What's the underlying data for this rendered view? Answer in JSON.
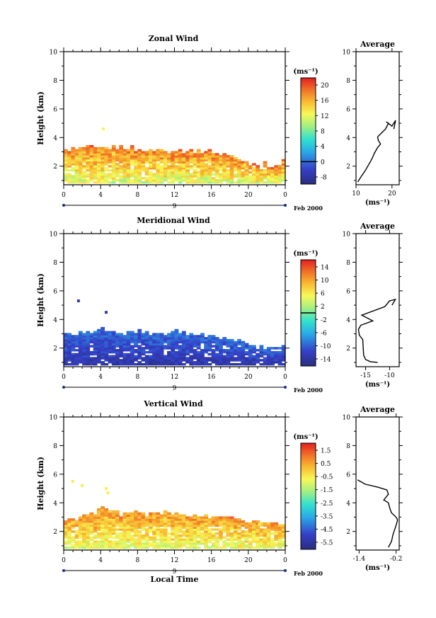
{
  "chart_data": [
    {
      "type": "heatmap",
      "title": "Zonal Wind",
      "ylabel": "Height (km)",
      "ylim": [
        0.7,
        10
      ],
      "y_ticks": [
        "2",
        "4",
        "6",
        "8",
        "10"
      ],
      "x_ticks": [
        "0",
        "4",
        "8",
        "12",
        "16",
        "20",
        "0"
      ],
      "x_date_label": "9",
      "x_range_label": "Feb 2000",
      "colorbar": {
        "unit": "(ms⁻¹)",
        "ticks": [
          "20",
          "16",
          "12",
          "8",
          "4",
          "0",
          "-8"
        ],
        "range": [
          -10,
          22
        ],
        "contour_at": 0
      },
      "cloud_top_km": [
        3.0,
        3.1,
        3.2,
        3.2,
        3.1,
        3.3,
        3.3,
        3.2,
        3.1,
        3.0,
        3.1,
        3.0,
        3.1,
        3.0,
        3.0,
        3.0,
        2.9,
        2.8,
        2.6,
        2.4,
        2.2,
        2.1,
        2.0,
        2.0,
        2.4
      ],
      "scattered_points": [
        {
          "x": 4.3,
          "y": 4.6
        },
        {
          "x": 19.6,
          "y": 2.1
        }
      ],
      "value_low": 5,
      "value_high": 18,
      "average": {
        "title": "Average",
        "xlabel": "(ms⁻¹)",
        "x_ticks": [
          "10",
          "20"
        ],
        "xlim": [
          10,
          22
        ],
        "ylim": [
          0.7,
          10
        ],
        "y_ticks": [
          "2",
          "4",
          "6",
          "8",
          "10"
        ],
        "profile": [
          [
            10.5,
            0.9
          ],
          [
            11.5,
            1.3
          ],
          [
            12.6,
            1.7
          ],
          [
            13.5,
            2.1
          ],
          [
            14.4,
            2.5
          ],
          [
            15.1,
            2.9
          ],
          [
            16.0,
            3.3
          ],
          [
            16.8,
            3.55
          ],
          [
            16.2,
            3.8
          ],
          [
            16.0,
            4.05
          ],
          [
            17.0,
            4.3
          ],
          [
            18.2,
            4.6
          ],
          [
            19.0,
            5.0
          ],
          [
            18.4,
            5.1
          ],
          [
            20.0,
            4.8
          ],
          [
            21.0,
            5.2
          ],
          [
            20.5,
            4.6
          ]
        ]
      }
    },
    {
      "type": "heatmap",
      "title": "Meridional Wind",
      "ylabel": "Height (km)",
      "ylim": [
        0.7,
        10
      ],
      "y_ticks": [
        "2",
        "4",
        "6",
        "8",
        "10"
      ],
      "x_ticks": [
        "0",
        "4",
        "8",
        "12",
        "16",
        "20",
        "0"
      ],
      "x_date_label": "9",
      "x_range_label": "Feb 2000",
      "colorbar": {
        "unit": "(ms⁻¹)",
        "ticks": [
          "14",
          "10",
          "6",
          "2",
          "-2",
          "-6",
          "-10",
          "-14"
        ],
        "range": [
          -16,
          16
        ],
        "contour_at": 0
      },
      "cloud_top_km": [
        2.9,
        3.0,
        3.1,
        3.2,
        3.3,
        3.2,
        3.1,
        3.0,
        3.1,
        3.0,
        2.9,
        3.0,
        3.1,
        3.0,
        2.9,
        2.8,
        2.7,
        2.5,
        2.4,
        2.3,
        2.1,
        2.0,
        2.0,
        2.0,
        2.2
      ],
      "scattered_points": [
        {
          "x": 1.6,
          "y": 5.3
        },
        {
          "x": 4.6,
          "y": 4.5
        }
      ],
      "value_low": -16,
      "value_high": -9,
      "average": {
        "title": "Average",
        "xlabel": "(ms⁻¹)",
        "x_ticks": [
          "-15",
          "-10"
        ],
        "xlim": [
          -17,
          -8
        ],
        "ylim": [
          0.7,
          10
        ],
        "y_ticks": [
          "2",
          "4",
          "6",
          "8",
          "10"
        ],
        "profile": [
          [
            -12.5,
            1.0
          ],
          [
            -14.0,
            1.05
          ],
          [
            -15.0,
            1.2
          ],
          [
            -15.4,
            1.5
          ],
          [
            -15.5,
            2.0
          ],
          [
            -15.6,
            2.6
          ],
          [
            -16.3,
            2.9
          ],
          [
            -16.5,
            3.3
          ],
          [
            -16.0,
            3.6
          ],
          [
            -13.5,
            3.9
          ],
          [
            -15.8,
            4.3
          ],
          [
            -11.0,
            4.9
          ],
          [
            -10.0,
            5.3
          ],
          [
            -8.8,
            5.4
          ],
          [
            -9.5,
            5.0
          ]
        ]
      }
    },
    {
      "type": "heatmap",
      "title": "Vertical Wind",
      "ylabel": "Height (km)",
      "xlabel": "Local Time",
      "ylim": [
        0.7,
        10
      ],
      "y_ticks": [
        "2",
        "4",
        "6",
        "8",
        "10"
      ],
      "x_ticks": [
        "0",
        "4",
        "8",
        "12",
        "16",
        "20",
        "0"
      ],
      "x_date_label": "9",
      "x_range_label": "Feb 2000",
      "colorbar": {
        "unit": "(ms⁻¹)",
        "ticks": [
          "1.5",
          "0.5",
          "-0.5",
          "-1.5",
          "-2.5",
          "-3.5",
          "-4.5",
          "-5.5"
        ],
        "range": [
          -6,
          2
        ],
        "contour_at": null
      },
      "cloud_top_km": [
        2.6,
        2.8,
        3.0,
        3.2,
        3.7,
        3.4,
        3.2,
        3.2,
        3.2,
        3.1,
        3.2,
        3.2,
        3.1,
        3.1,
        3.0,
        3.0,
        3.0,
        3.0,
        3.0,
        2.8,
        2.6,
        2.6,
        2.5,
        2.4,
        2.6
      ],
      "scattered_points": [
        {
          "x": 1.0,
          "y": 5.5
        },
        {
          "x": 2.0,
          "y": 5.2
        },
        {
          "x": 4.6,
          "y": 5.0
        },
        {
          "x": 4.8,
          "y": 4.7
        },
        {
          "x": 21.2,
          "y": 2.5
        }
      ],
      "value_low": -2,
      "value_high": 0.8,
      "average": {
        "title": "Average",
        "xlabel": "(ms⁻¹)",
        "x_ticks": [
          "-1.4",
          "-0.2"
        ],
        "xlim": [
          -1.5,
          -0.1
        ],
        "ylim": [
          0.7,
          10
        ],
        "y_ticks": [
          "2",
          "4",
          "6",
          "8",
          "10"
        ],
        "profile": [
          [
            -0.45,
            0.9
          ],
          [
            -0.35,
            1.3
          ],
          [
            -0.3,
            1.8
          ],
          [
            -0.22,
            2.3
          ],
          [
            -0.15,
            2.8
          ],
          [
            -0.2,
            3.0
          ],
          [
            -0.35,
            3.3
          ],
          [
            -0.4,
            3.6
          ],
          [
            -0.45,
            4.0
          ],
          [
            -0.6,
            4.2
          ],
          [
            -0.45,
            4.6
          ],
          [
            -0.5,
            4.9
          ],
          [
            -0.8,
            5.1
          ],
          [
            -1.2,
            5.3
          ],
          [
            -1.45,
            5.6
          ]
        ]
      }
    }
  ]
}
